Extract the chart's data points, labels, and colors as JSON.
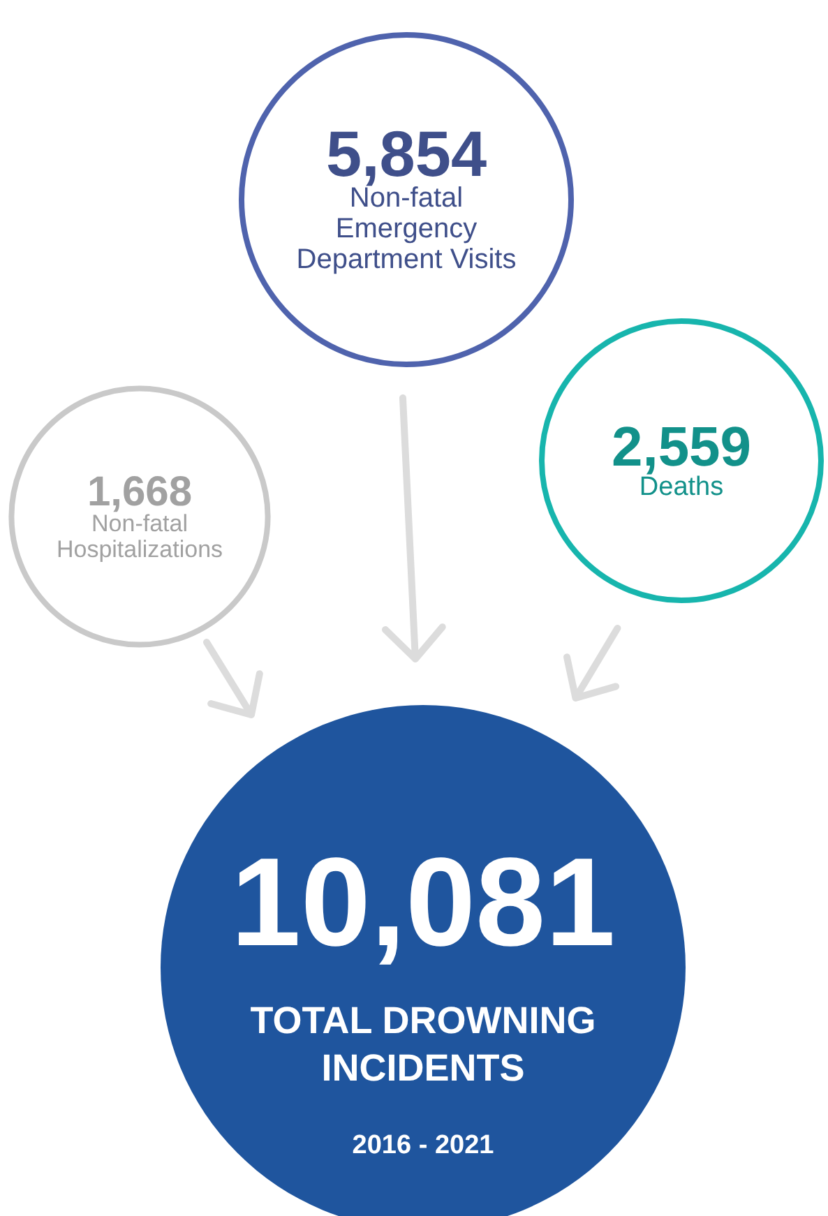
{
  "chart_data": {
    "type": "other",
    "title": "TOTAL DROWNING INCIDENTS",
    "subtitle": "2016 - 2021",
    "categories": [
      "Non-fatal Emergency Department Visits",
      "Deaths",
      "Non-fatal Hospitalizations"
    ],
    "values": [
      5854,
      2559,
      1668
    ],
    "value_labels": [
      "5,854",
      "2,559",
      "1,668"
    ],
    "colors": [
      "#4f63ad",
      "#17b5ad",
      "#c9c9c9"
    ],
    "totals": [
      "10,081"
    ],
    "color": "#1f559e"
  }
}
